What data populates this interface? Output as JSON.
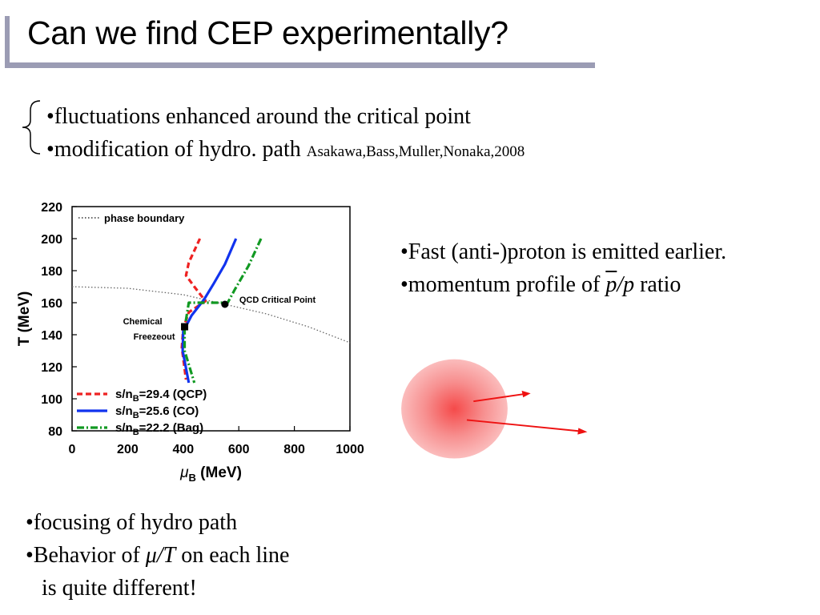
{
  "slide": {
    "title": "Can we find CEP experimentally?",
    "top_bullets": [
      {
        "text": "•fluctuations enhanced around the critical point"
      },
      {
        "text": "•modification of hydro. path ",
        "cite": "Asakawa,Bass,Muller,Nonaka,2008"
      }
    ],
    "right_bullets": {
      "line1": "•Fast (anti-)proton is emitted earlier.",
      "line2_prefix": "•momentum profile of ",
      "line2_pbar": "p",
      "line2_slash_p": "/p",
      "line2_suffix": " ratio"
    },
    "bottom_bullets": {
      "line1": "•focusing of hydro path",
      "line2_prefix": "•Behavior of ",
      "line2_mu": "μ",
      "line2_slash_T": "/T",
      "line2_suffix": " on each line",
      "line3": "is quite different!"
    }
  },
  "chart_data": {
    "type": "line",
    "xlabel": "μB (MeV)",
    "xlabel_sub_note": "B",
    "ylabel": "T (MeV)",
    "xlim": [
      0,
      1000
    ],
    "ylim": [
      80,
      220
    ],
    "xticks": [
      0,
      200,
      400,
      600,
      800,
      1000
    ],
    "yticks": [
      80,
      100,
      120,
      140,
      160,
      180,
      200,
      220
    ],
    "legend_top": "phase boundary",
    "annotations": {
      "critical_point_label": "QCD Critical Point",
      "freezeout_label_1": "Chemical",
      "freezeout_label_2": "Freezeout"
    },
    "critical_point": {
      "x": 550,
      "y": 159
    },
    "freezeout_point": {
      "x": 405,
      "y": 145
    },
    "phase_boundary": [
      {
        "x": 0,
        "y": 170
      },
      {
        "x": 200,
        "y": 169
      },
      {
        "x": 400,
        "y": 165
      },
      {
        "x": 550,
        "y": 159
      },
      {
        "x": 700,
        "y": 153
      },
      {
        "x": 850,
        "y": 145
      },
      {
        "x": 1000,
        "y": 135
      }
    ],
    "series": [
      {
        "name": "s/nB=29.4 (QCP)",
        "color": "#ee2222",
        "dash": "dash",
        "points": [
          {
            "x": 460,
            "y": 200
          },
          {
            "x": 420,
            "y": 185
          },
          {
            "x": 410,
            "y": 177
          },
          {
            "x": 440,
            "y": 170
          },
          {
            "x": 480,
            "y": 161
          },
          {
            "x": 420,
            "y": 154
          },
          {
            "x": 400,
            "y": 144
          },
          {
            "x": 395,
            "y": 132
          },
          {
            "x": 410,
            "y": 112
          }
        ]
      },
      {
        "name": "s/nB=25.6 (CO)",
        "color": "#1133ee",
        "dash": "solid",
        "points": [
          {
            "x": 590,
            "y": 200
          },
          {
            "x": 550,
            "y": 184
          },
          {
            "x": 510,
            "y": 172
          },
          {
            "x": 475,
            "y": 162
          },
          {
            "x": 430,
            "y": 152
          },
          {
            "x": 400,
            "y": 142
          },
          {
            "x": 398,
            "y": 130
          },
          {
            "x": 420,
            "y": 110
          }
        ]
      },
      {
        "name": "s/nB=22.2 (Bag)",
        "color": "#119922",
        "dash": "dashdot",
        "points": [
          {
            "x": 680,
            "y": 200
          },
          {
            "x": 635,
            "y": 183
          },
          {
            "x": 585,
            "y": 168
          },
          {
            "x": 560,
            "y": 160
          },
          {
            "x": 420,
            "y": 160
          },
          {
            "x": 405,
            "y": 144
          },
          {
            "x": 405,
            "y": 130
          },
          {
            "x": 440,
            "y": 110
          }
        ]
      }
    ],
    "legend_entries": [
      {
        "prefix": "s/n",
        "sub": "B",
        "rest": "=29.4 (QCP)"
      },
      {
        "prefix": "s/n",
        "sub": "B",
        "rest": "=25.6 (CO)"
      },
      {
        "prefix": "s/n",
        "sub": "B",
        "rest": "=22.2 (Bag)"
      }
    ],
    "grid": false
  },
  "colors": {
    "title_bar": "#9b9cb4",
    "fireball_center": "#f55a5a",
    "arrow": "#ee1111"
  }
}
